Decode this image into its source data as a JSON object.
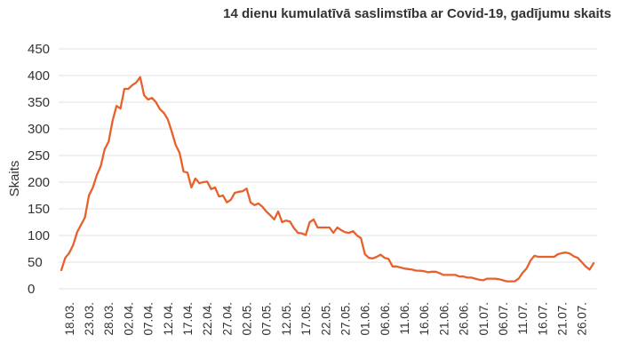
{
  "chart_data": {
    "type": "line",
    "title": "14 dienu kumulatīvā saslimstība ar Covid-19, gadījumu skaits",
    "xlabel": "",
    "ylabel": "Skaits",
    "ylim": [
      0,
      450
    ],
    "yticks": [
      0,
      50,
      100,
      150,
      200,
      250,
      300,
      350,
      400,
      450
    ],
    "grid": true,
    "legend": "none",
    "colors": {
      "line": "#e8612c",
      "grid": "#e2e2e2",
      "text": "#333333"
    },
    "xtick_labels": [
      "18.03.",
      "23.03.",
      "28.03.",
      "02.04.",
      "07.04.",
      "12.04.",
      "17.04.",
      "22.04.",
      "27.04.",
      "02.05.",
      "07.05.",
      "12.05.",
      "17.05.",
      "22.05.",
      "27.05.",
      "01.06.",
      "06.06.",
      "11.06.",
      "16.06.",
      "21.06.",
      "26.06.",
      "01.07.",
      "06.07.",
      "11.07.",
      "16.07.",
      "21.07.",
      "26.07."
    ],
    "series": [
      {
        "x_start": "2020-03-16",
        "x_end": "2020-07-27",
        "step_days": 1,
        "values": [
          35,
          58,
          67,
          82,
          106,
          120,
          134,
          175,
          190,
          213,
          230,
          262,
          276,
          315,
          343,
          338,
          375,
          375,
          382,
          387,
          397,
          363,
          355,
          358,
          350,
          337,
          330,
          318,
          295,
          270,
          255,
          220,
          218,
          190,
          207,
          198,
          200,
          201,
          187,
          190,
          173,
          175,
          162,
          167,
          180,
          182,
          183,
          188,
          162,
          157,
          160,
          154,
          145,
          138,
          130,
          145,
          125,
          128,
          126,
          114,
          105,
          104,
          101,
          125,
          130,
          115,
          115,
          115,
          115,
          105,
          115,
          110,
          106,
          105,
          108,
          100,
          95,
          65,
          58,
          57,
          60,
          64,
          58,
          56,
          42,
          42,
          40,
          38,
          37,
          36,
          34,
          34,
          33,
          31,
          32,
          32,
          29,
          26,
          26,
          26,
          26,
          23,
          23,
          21,
          21,
          19,
          17,
          16,
          19,
          19,
          19,
          18,
          16,
          14,
          14,
          14,
          19,
          30,
          38,
          53,
          62,
          60,
          60,
          60,
          60,
          60,
          65,
          67,
          68,
          66,
          61,
          58,
          50,
          42,
          36,
          48
        ]
      }
    ]
  }
}
